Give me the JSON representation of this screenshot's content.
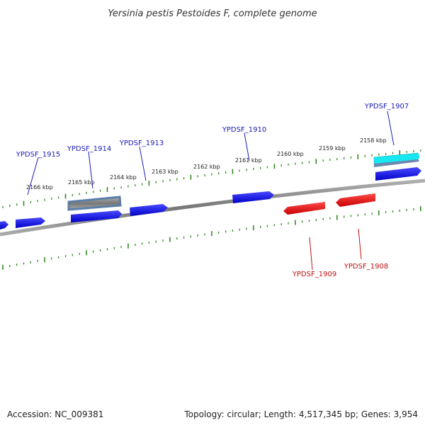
{
  "title": "Yersinia pestis Pestoides F, complete genome",
  "footer": {
    "accession": "Accession: NC_009381",
    "summary": "Topology: circular; Length: 4,517,345 bp; Genes: 3,954"
  },
  "colors": {
    "forward_gene": "#1010e6",
    "reverse_gene": "#e61010",
    "rna_gene": "#6a8fb6",
    "highlight_gene": "#16e0e8",
    "tick": "#2e8b1e",
    "backbone": "#888888",
    "forward_label": "#1a1ab8",
    "reverse_label": "#c01010"
  },
  "scale_labels": [
    "2158 kbp",
    "2159 kbp",
    "2160 kbp",
    "2161 kbp",
    "2162 kbp",
    "2163 kbp",
    "2164 kbp",
    "2165 kbp",
    "2166 kbp"
  ],
  "genes": [
    {
      "name": "YPDSF_1907",
      "strand": "forward"
    },
    {
      "name": "YPDSF_1908",
      "strand": "reverse"
    },
    {
      "name": "YPDSF_1909",
      "strand": "reverse"
    },
    {
      "name": "YPDSF_1910",
      "strand": "forward"
    },
    {
      "name": "YPDSF_1913",
      "strand": "forward"
    },
    {
      "name": "YPDSF_1914",
      "strand": "forward"
    },
    {
      "name": "YPDSF_1915",
      "strand": "forward"
    }
  ]
}
